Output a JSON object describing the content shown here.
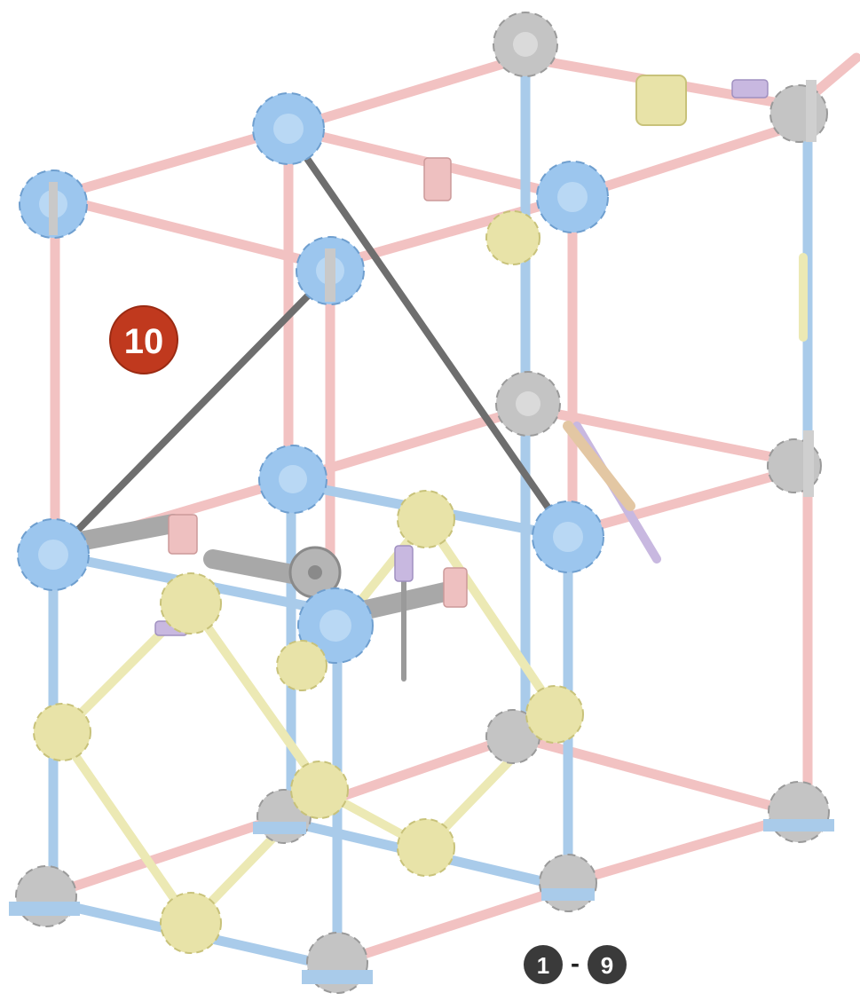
{
  "step": {
    "number": "10",
    "color": "#c0391e"
  },
  "range": {
    "start": "1",
    "separator": "-",
    "end": "9",
    "color": "#3a3a3a"
  },
  "palette": {
    "pink_rod": "#f2c2c2",
    "blue_rod": "#a9cbea",
    "yellow_rod": "#ece9b4",
    "dark_rod": "#6e6e6e",
    "blue_connector": "#9cc6ee",
    "gray_connector": "#c4c4c4",
    "yellow_connector": "#e8e3a8",
    "purple_part": "#c8b8e0",
    "gray_axle": "#a8a8a8"
  }
}
